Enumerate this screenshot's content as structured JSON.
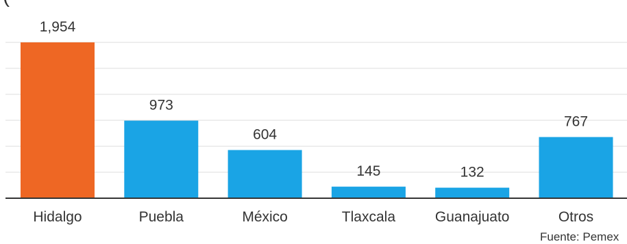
{
  "partial_title": "(",
  "source": "Fuente: Pemex",
  "colors": {
    "highlight": "#ee6724",
    "bar": "#1aa4e5",
    "grid": "#dddddd",
    "axis": "#333333",
    "text": "#333333"
  },
  "chart_data": {
    "type": "bar",
    "categories": [
      "Hidalgo",
      "Puebla",
      "México",
      "Tlaxcala",
      "Guanajuato",
      "Otros"
    ],
    "values": [
      1954,
      973,
      604,
      145,
      132,
      767
    ],
    "value_labels": [
      "1,954",
      "973",
      "604",
      "145",
      "132",
      "767"
    ],
    "highlight_index": 0,
    "title": "",
    "xlabel": "",
    "ylabel": "",
    "ylim": [
      0,
      1954
    ],
    "grid": true,
    "legend": "none"
  }
}
